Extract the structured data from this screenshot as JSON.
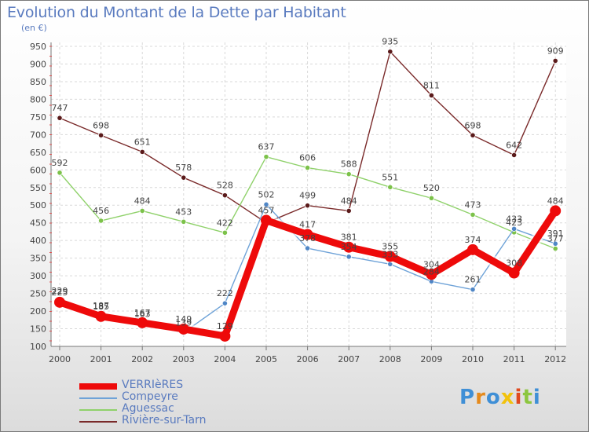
{
  "title": "Evolution du Montant de la Dette par Habitant",
  "subtitle": "(en €)",
  "logo": {
    "text": "Proxiti",
    "colors": [
      "#3f8fd6",
      "#e58a1c",
      "#3f8fd6",
      "#f2c20c",
      "#e04a1f",
      "#8cc63f",
      "#3f8fd6"
    ]
  },
  "chart_data": {
    "type": "line",
    "x": [
      "2000",
      "2001",
      "2002",
      "2003",
      "2004",
      "2005",
      "2006",
      "2007",
      "2008",
      "2009",
      "2010",
      "2011",
      "2012"
    ],
    "ylim": [
      100,
      950
    ],
    "yticks": [
      100,
      150,
      200,
      250,
      300,
      350,
      400,
      450,
      500,
      550,
      600,
      650,
      700,
      750,
      800,
      850,
      900,
      950
    ],
    "grid": true,
    "legend": "bottom-left",
    "series": [
      {
        "name": "Rivière-sur-Tarn",
        "color": "#7a2a2a",
        "marker": "#5a1a1a",
        "values": [
          747,
          698,
          651,
          578,
          528,
          450,
          499,
          484,
          935,
          811,
          698,
          642,
          909
        ],
        "labels": [
          "747",
          "698",
          "651",
          "578",
          "528",
          "",
          "499",
          "484",
          "935",
          "811",
          "698",
          "642",
          "909"
        ]
      },
      {
        "name": "Aguessac",
        "color": "#8fd16a",
        "marker": "#7cc24a",
        "values": [
          592,
          456,
          484,
          453,
          422,
          637,
          606,
          588,
          551,
          520,
          473,
          423,
          377
        ],
        "labels": [
          "592",
          "456",
          "484",
          "453",
          "422",
          "637",
          "606",
          "588",
          "551",
          "520",
          "473",
          "423",
          "377"
        ]
      },
      {
        "name": "Compeyre",
        "color": "#6fa3d8",
        "marker": "#4f86c6",
        "values": [
          229,
          187,
          163,
          139,
          222,
          502,
          378,
          354,
          333,
          284,
          261,
          433,
          391
        ],
        "labels": [
          "229",
          "187",
          "163",
          "139",
          "222",
          "502",
          "378",
          "354",
          "333",
          "284",
          "261",
          "433",
          "391"
        ]
      },
      {
        "name": "VERRIèRES",
        "color": "#ee0a0a",
        "marker": "#ee0a0a",
        "values": [
          225,
          185,
          167,
          149,
          129,
          457,
          417,
          381,
          355,
          304,
          374,
          308,
          484
        ],
        "labels": [
          "225",
          "185",
          "167",
          "149",
          "129",
          "457",
          "417",
          "381",
          "355",
          "304",
          "374",
          "308",
          "484"
        ]
      }
    ]
  },
  "legend_items": [
    {
      "name": "VERRIèRES",
      "color": "#ee0a0a"
    },
    {
      "name": "Compeyre",
      "color": "#6fa3d8"
    },
    {
      "name": "Aguessac",
      "color": "#8fd16a"
    },
    {
      "name": "Rivière-sur-Tarn",
      "color": "#7a2a2a"
    }
  ]
}
